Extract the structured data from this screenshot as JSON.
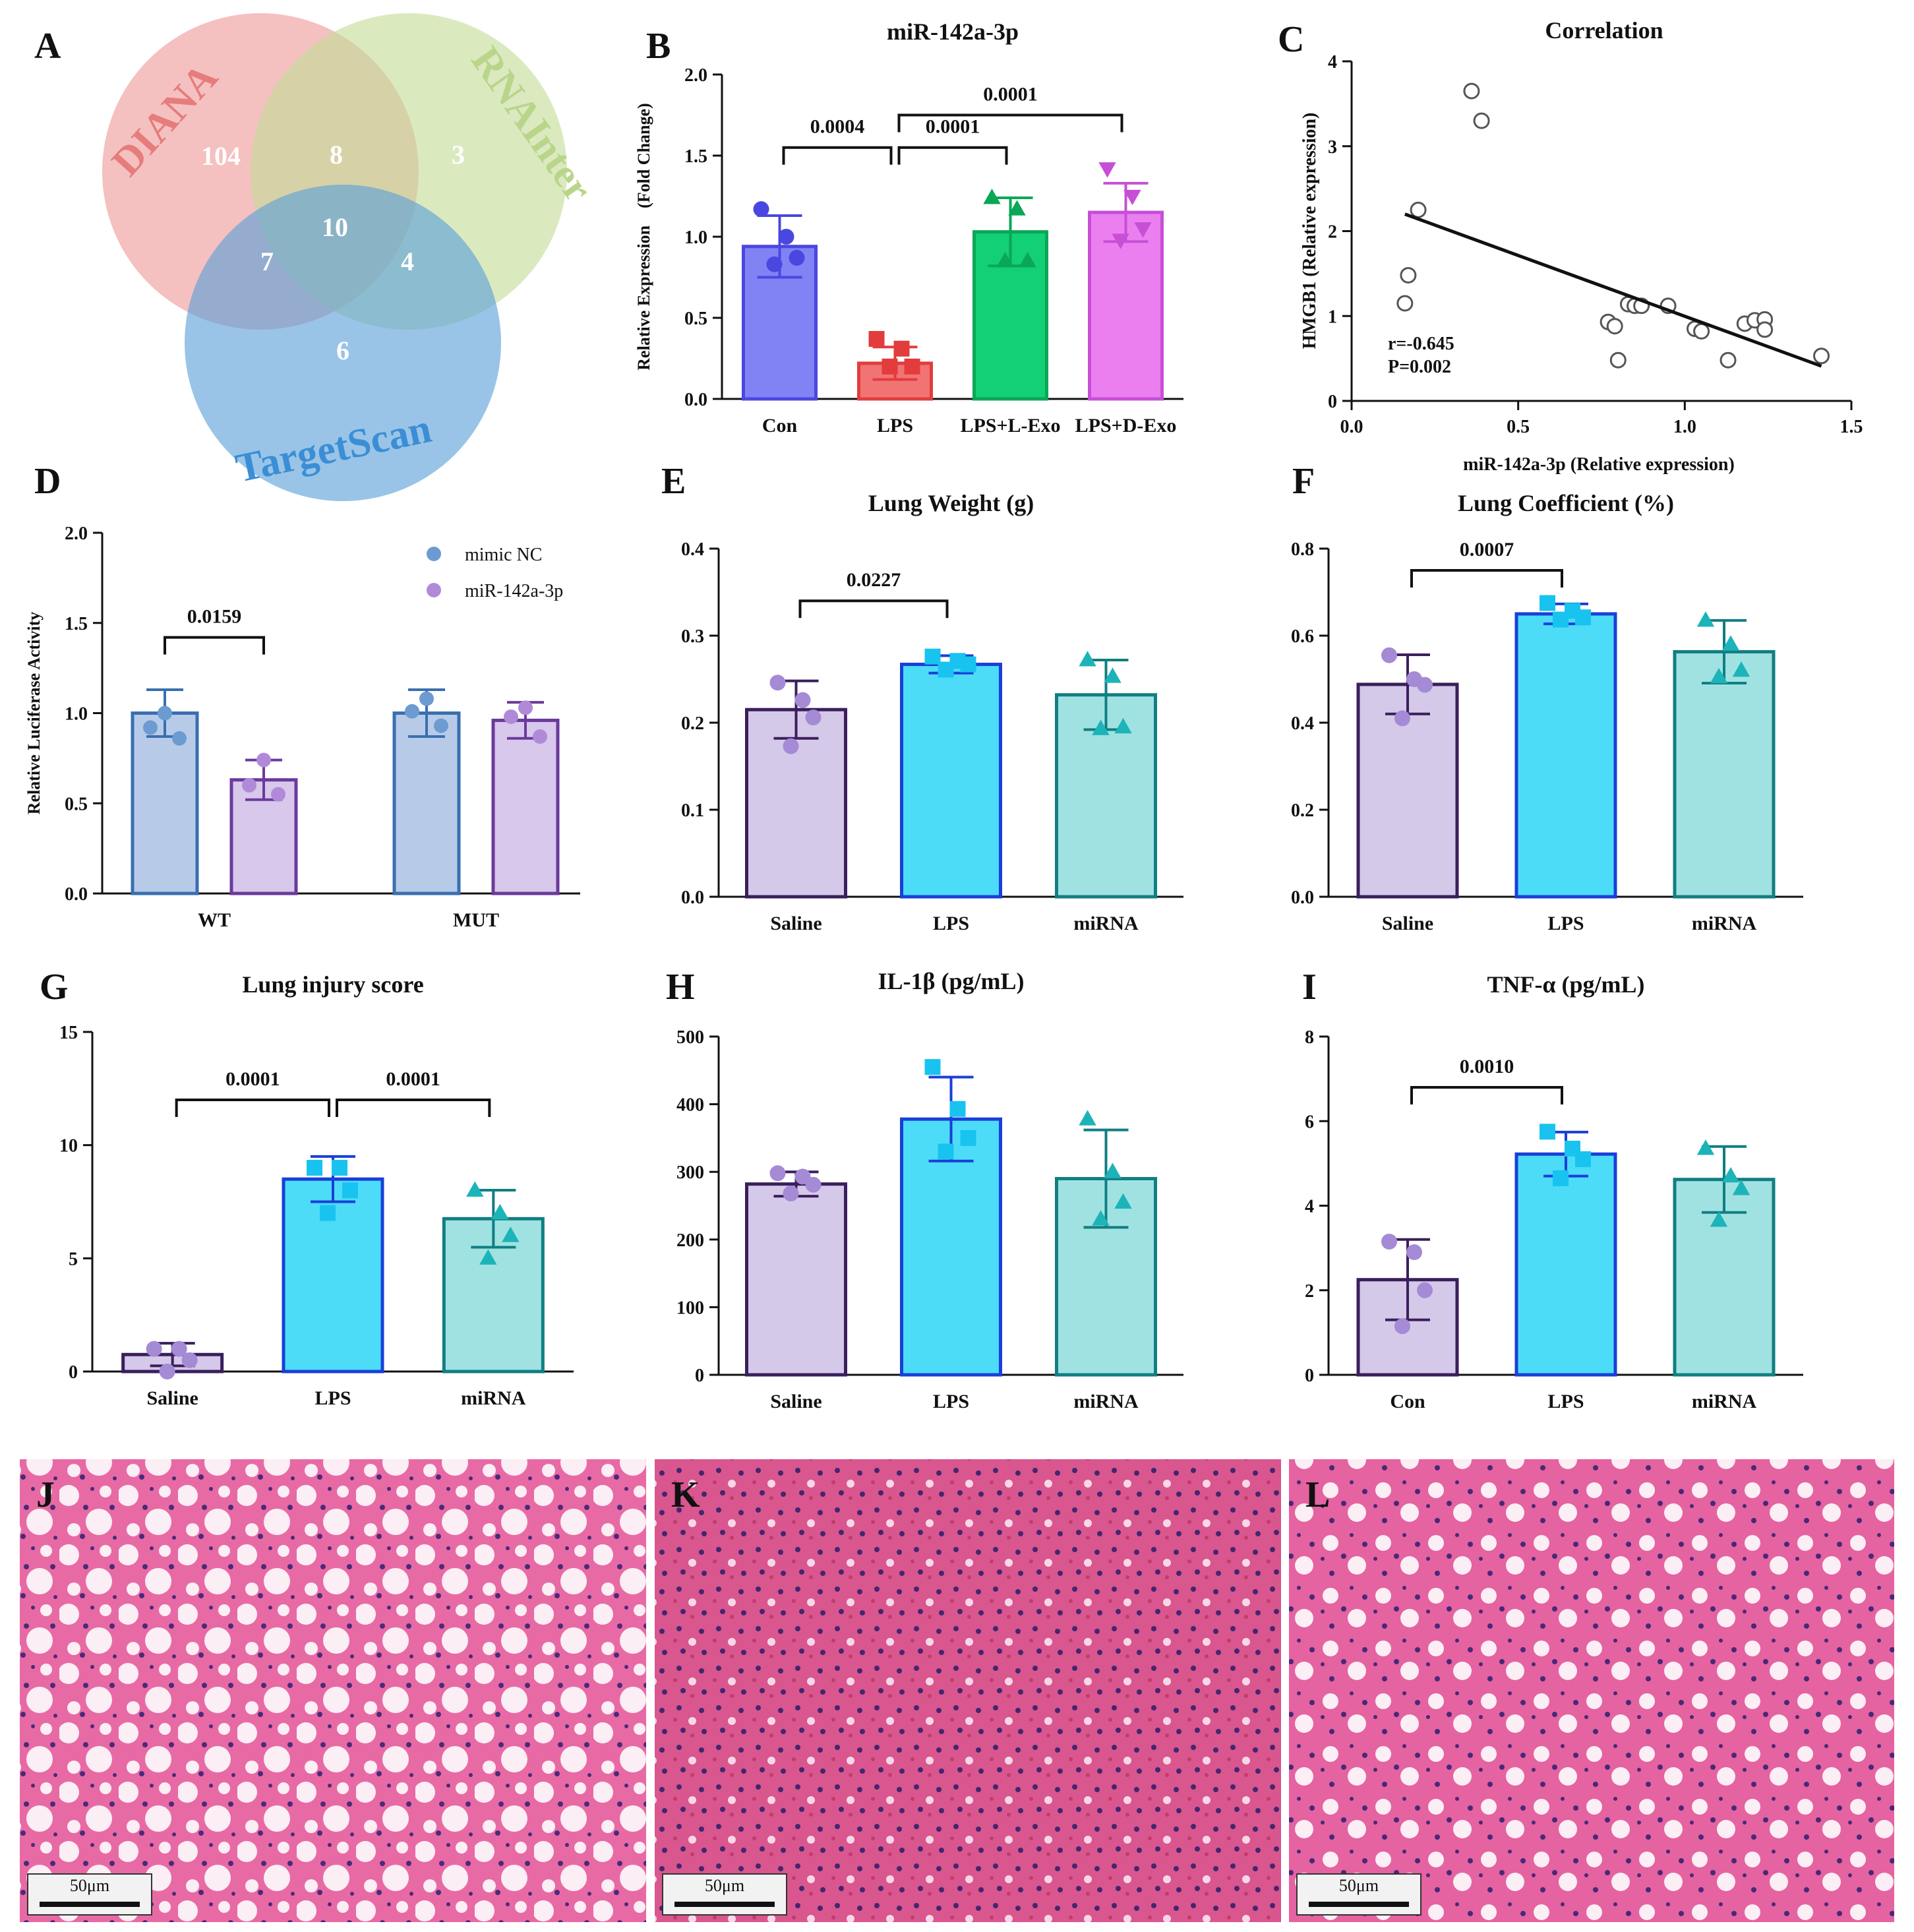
{
  "figure": {
    "panels": {
      "A": {
        "letter": "A",
        "venn": {
          "sets": [
            {
              "name": "DIANA",
              "color": "#ef9a9a"
            },
            {
              "name": "RNAInter",
              "color": "#c5dc98"
            },
            {
              "name": "TargetScan",
              "color": "#5b9fd8"
            }
          ],
          "regions": {
            "diana_only": "104",
            "diana_rnainter": "8",
            "rnainter_only": "3",
            "all_three": "10",
            "diana_targetscan": "7",
            "rnainter_targetscan": "4",
            "targetscan_only": "6"
          }
        }
      },
      "J": {
        "letter": "J",
        "scale_label": "50μm"
      },
      "K": {
        "letter": "K",
        "scale_label": "50μm"
      },
      "L": {
        "letter": "L",
        "scale_label": "50μm"
      }
    }
  },
  "chart_data": [
    {
      "panel": "B",
      "type": "bar",
      "title": "miR-142a-3p",
      "ylabel": "Relative Expression　(Fold Change)",
      "ylim": [
        0,
        2.0
      ],
      "yticks": [
        "0.0",
        "0.5",
        "1.0",
        "1.5",
        "2.0"
      ],
      "categories": [
        "Con",
        "LPS",
        "LPS+L-Exo",
        "LPS+D-Exo"
      ],
      "values": [
        0.94,
        0.22,
        1.03,
        1.15
      ],
      "errors": [
        0.19,
        0.1,
        0.21,
        0.18
      ],
      "points": [
        [
          1.17,
          1.0,
          0.87,
          0.83
        ],
        [
          0.37,
          0.31,
          0.2,
          0.2
        ],
        [
          1.24,
          1.17,
          0.85,
          0.85
        ],
        [
          1.42,
          1.25,
          1.05,
          0.98
        ]
      ],
      "markers": [
        "circle",
        "square",
        "triangle",
        "triangle-down"
      ],
      "fills": [
        "#8183f5",
        "#f27374",
        "#13cf75",
        "#ec7ff0"
      ],
      "strokes": [
        "#4a47e0",
        "#e23c3c",
        "#0aa756",
        "#c64fd6"
      ],
      "brackets": [
        {
          "from": 0,
          "to": 1,
          "level": 1.55,
          "label": "0.0004"
        },
        {
          "from": 1,
          "to": 2,
          "level": 1.55,
          "label": "0.0001"
        },
        {
          "from": 1,
          "to": 3,
          "level": 1.75,
          "label": "0.0001"
        }
      ]
    },
    {
      "panel": "C",
      "type": "scatter",
      "title": "Correlation",
      "xlabel": "miR-142a-3p (Relative expression)",
      "ylabel": "HMGB1 (Relative expression)",
      "xlim": [
        0,
        1.5
      ],
      "ylim": [
        0,
        4
      ],
      "xticks": [
        "0.0",
        "0.5",
        "1.0",
        "1.5"
      ],
      "yticks": [
        "0",
        "1",
        "2",
        "3",
        "4"
      ],
      "x": [
        0.36,
        0.39,
        0.2,
        0.17,
        0.16,
        0.77,
        0.79,
        0.83,
        0.85,
        0.87,
        0.95,
        1.03,
        1.05,
        1.18,
        1.21,
        1.24,
        1.24,
        0.8,
        1.13,
        1.41
      ],
      "y": [
        3.65,
        3.3,
        2.25,
        1.48,
        1.15,
        0.93,
        0.88,
        1.14,
        1.12,
        1.12,
        1.12,
        0.85,
        0.82,
        0.91,
        0.95,
        0.96,
        0.84,
        0.48,
        0.48,
        0.53
      ],
      "fit": {
        "x": [
          0.16,
          1.41
        ],
        "y": [
          2.2,
          0.41
        ]
      },
      "stats": [
        "r=-0.645",
        "P=0.002"
      ]
    },
    {
      "panel": "D",
      "type": "bar",
      "title": "",
      "ylabel": "Relative Luciferase Activity",
      "ylim": [
        0,
        2.0
      ],
      "yticks": [
        "0.0",
        "0.5",
        "1.0",
        "1.5",
        "2.0"
      ],
      "groups": [
        "WT",
        "MUT"
      ],
      "legend": {
        "position": "top-right"
      },
      "series": [
        {
          "name": "mimic NC",
          "values": [
            1.0,
            1.0
          ],
          "errors": [
            0.13,
            0.13
          ],
          "points": [
            [
              1.0,
              0.92,
              0.86
            ],
            [
              1.08,
              1.01,
              0.93
            ]
          ],
          "fill": "#b7cbe8",
          "stroke": "#3a6fb0",
          "dot": "#6c9bd2"
        },
        {
          "name": "miR-142a-3p",
          "values": [
            0.63,
            0.96
          ],
          "errors": [
            0.11,
            0.1
          ],
          "points": [
            [
              0.74,
              0.6,
              0.55
            ],
            [
              1.03,
              0.98,
              0.87
            ]
          ],
          "fill": "#d7c8ec",
          "stroke": "#6b3a9c",
          "dot": "#b08ad8"
        }
      ],
      "brackets": [
        {
          "group": 0,
          "level": 1.42,
          "label": "0.0159"
        }
      ]
    },
    {
      "panel": "E",
      "type": "bar",
      "title": "Lung Weight (g)",
      "ylim": [
        0,
        0.4
      ],
      "yticks": [
        "0.0",
        "0.1",
        "0.2",
        "0.3",
        "0.4"
      ],
      "categories": [
        "Saline",
        "LPS",
        "miRNA"
      ],
      "values": [
        0.215,
        0.267,
        0.232
      ],
      "errors": [
        0.033,
        0.01,
        0.04
      ],
      "points": [
        [
          0.246,
          0.226,
          0.206,
          0.173
        ],
        [
          0.276,
          0.271,
          0.267,
          0.261
        ],
        [
          0.272,
          0.253,
          0.195,
          0.193
        ]
      ],
      "markers": [
        "circle",
        "square",
        "triangle"
      ],
      "fills": [
        "#d5c9ea",
        "#4cdcf8",
        "#a0e2e2"
      ],
      "strokes": [
        "#3a1f5c",
        "#1a3fd8",
        "#117e82"
      ],
      "dots": [
        "#a58ad6",
        "#18c3ef",
        "#1cb4b8"
      ],
      "brackets": [
        {
          "from": 0,
          "to": 1,
          "level": 0.34,
          "label": "0.0227"
        }
      ]
    },
    {
      "panel": "F",
      "type": "bar",
      "title": "Lung Coefficient (%)",
      "ylim": [
        0,
        0.8
      ],
      "yticks": [
        "0.0",
        "0.2",
        "0.4",
        "0.6",
        "0.8"
      ],
      "categories": [
        "Saline",
        "LPS",
        "miRNA"
      ],
      "values": [
        0.488,
        0.65,
        0.563
      ],
      "errors": [
        0.068,
        0.023,
        0.072
      ],
      "points": [
        [
          0.555,
          0.5,
          0.487,
          0.41
        ],
        [
          0.675,
          0.657,
          0.642,
          0.637
        ],
        [
          0.635,
          0.58,
          0.52,
          0.505
        ]
      ],
      "markers": [
        "circle",
        "square",
        "triangle"
      ],
      "fills": [
        "#d5c9ea",
        "#4cdcf8",
        "#a0e2e2"
      ],
      "strokes": [
        "#3a1f5c",
        "#1a3fd8",
        "#117e82"
      ],
      "dots": [
        "#a58ad6",
        "#18c3ef",
        "#1cb4b8"
      ],
      "brackets": [
        {
          "from": 0,
          "to": 1,
          "level": 0.75,
          "label": "0.0007"
        }
      ]
    },
    {
      "panel": "G",
      "type": "bar",
      "title": "Lung injury score",
      "ylim": [
        0,
        15
      ],
      "yticks": [
        "0",
        "5",
        "10",
        "15"
      ],
      "categories": [
        "Saline",
        "LPS",
        "miRNA"
      ],
      "values": [
        0.75,
        8.5,
        6.75
      ],
      "errors": [
        0.5,
        1.0,
        1.26
      ],
      "points": [
        [
          1.0,
          1.0,
          0.5,
          0.0
        ],
        [
          9.0,
          9.0,
          8.0,
          7.0
        ],
        [
          8.0,
          7.0,
          6.0,
          5.0
        ]
      ],
      "markers": [
        "circle",
        "square",
        "triangle"
      ],
      "fills": [
        "#d5c9ea",
        "#4cdcf8",
        "#a0e2e2"
      ],
      "strokes": [
        "#3a1f5c",
        "#1a3fd8",
        "#117e82"
      ],
      "dots": [
        "#a58ad6",
        "#18c3ef",
        "#1cb4b8"
      ],
      "brackets": [
        {
          "from": 0,
          "to": 1,
          "level": 12.0,
          "label": "0.0001"
        },
        {
          "from": 1,
          "to": 2,
          "level": 12.0,
          "label": "0.0001"
        }
      ]
    },
    {
      "panel": "H",
      "type": "bar",
      "title": "IL-1β (pg/mL)",
      "ylim": [
        0,
        500
      ],
      "yticks": [
        "0",
        "100",
        "200",
        "300",
        "400",
        "500"
      ],
      "categories": [
        "Saline",
        "LPS",
        "miRNA"
      ],
      "values": [
        282,
        378,
        290
      ],
      "errors": [
        18,
        62,
        72
      ],
      "points": [
        [
          298,
          293,
          281,
          268
        ],
        [
          455,
          393,
          350,
          330
        ],
        [
          378,
          300,
          255,
          230
        ]
      ],
      "markers": [
        "circle",
        "square",
        "triangle"
      ],
      "fills": [
        "#d5c9ea",
        "#4cdcf8",
        "#a0e2e2"
      ],
      "strokes": [
        "#3a1f5c",
        "#1a3fd8",
        "#117e82"
      ],
      "dots": [
        "#a58ad6",
        "#18c3ef",
        "#1cb4b8"
      ],
      "brackets": []
    },
    {
      "panel": "I",
      "type": "bar",
      "title": "TNF-α (pg/mL)",
      "ylim": [
        0,
        8
      ],
      "yticks": [
        "0",
        "2",
        "4",
        "6",
        "8"
      ],
      "categories": [
        "Con",
        "LPS",
        "miRNA"
      ],
      "values": [
        2.25,
        5.22,
        4.62
      ],
      "errors": [
        0.95,
        0.52,
        0.78
      ],
      "points": [
        [
          3.15,
          2.9,
          2.0,
          1.15
        ],
        [
          5.75,
          5.35,
          5.1,
          4.65
        ],
        [
          5.35,
          4.7,
          4.4,
          3.65
        ]
      ],
      "markers": [
        "circle",
        "square",
        "triangle"
      ],
      "fills": [
        "#d5c9ea",
        "#4cdcf8",
        "#a0e2e2"
      ],
      "strokes": [
        "#3a1f5c",
        "#1a3fd8",
        "#117e82"
      ],
      "dots": [
        "#a58ad6",
        "#18c3ef",
        "#1cb4b8"
      ],
      "brackets": [
        {
          "from": 0,
          "to": 1,
          "level": 6.8,
          "label": "0.0010"
        }
      ]
    }
  ]
}
